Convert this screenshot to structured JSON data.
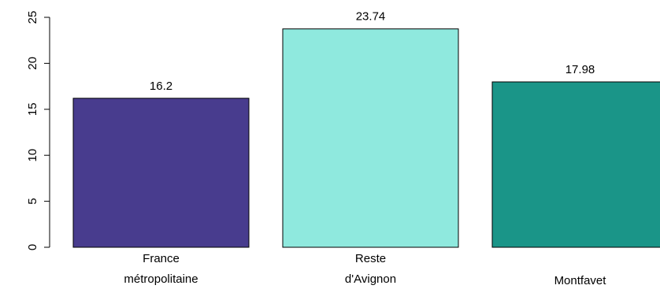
{
  "chart_data": {
    "type": "bar",
    "categories": [
      [
        "France",
        "métropolitaine"
      ],
      [
        "Reste",
        "d'Avignon"
      ],
      [
        "Montfavet"
      ]
    ],
    "values": [
      16.2,
      23.74,
      17.98
    ],
    "value_labels": [
      "16.2",
      "23.74",
      "17.98"
    ],
    "colors": [
      "#483C8E",
      "#8FE9DE",
      "#1A9588"
    ],
    "ylim": [
      0,
      25
    ],
    "yticks": [
      0,
      5,
      10,
      15,
      20,
      25
    ],
    "ytick_labels": [
      "0",
      "5",
      "10",
      "15",
      "20",
      "25"
    ],
    "title": "",
    "xlabel": "",
    "ylabel": "",
    "grid": false,
    "legend": "none"
  }
}
